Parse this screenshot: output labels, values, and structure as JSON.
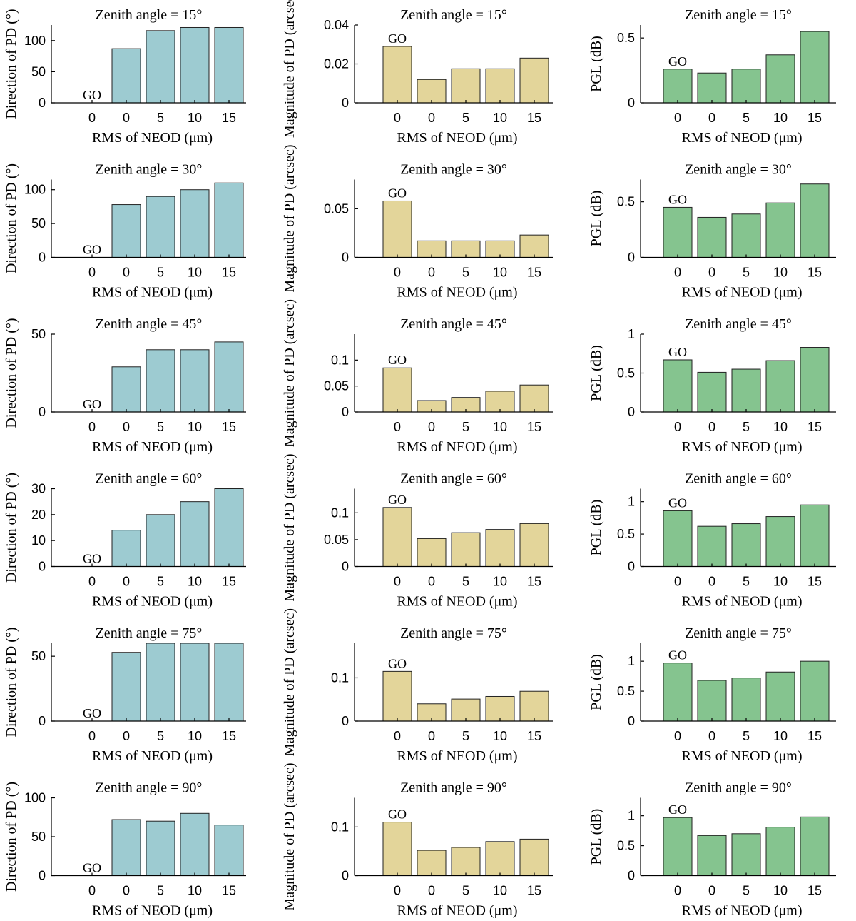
{
  "colors": {
    "direction": "#9dcbd1",
    "magnitude": "#e3d59a",
    "pgl": "#85c48f"
  },
  "chart_data": [
    {
      "type": "bar",
      "metric": "direction",
      "title": "Zenith angle = 15°",
      "xlabel": "RMS of NEOD (μm)",
      "ylabel": "Direction of PD (°)",
      "categories": [
        "0",
        "0",
        "5",
        "10",
        "15"
      ],
      "values": [
        0,
        87,
        116,
        121,
        121
      ],
      "annotation": "GO",
      "yticks": [
        "0",
        "50",
        "100"
      ],
      "ytick_values": [
        0,
        50,
        100
      ],
      "ylim": [
        0,
        125
      ]
    },
    {
      "type": "bar",
      "metric": "magnitude",
      "title": "Zenith angle = 15°",
      "xlabel": "RMS of NEOD (μm)",
      "ylabel": "Magnitude of PD (arcsec)",
      "categories": [
        "0",
        "0",
        "5",
        "10",
        "15"
      ],
      "values": [
        0.029,
        0.012,
        0.0175,
        0.0175,
        0.023
      ],
      "annotation": "GO",
      "yticks": [
        "0",
        "0.02",
        "0.04"
      ],
      "ytick_values": [
        0,
        0.02,
        0.04
      ],
      "ylim": [
        0,
        0.04
      ]
    },
    {
      "type": "bar",
      "metric": "pgl",
      "title": "Zenith angle = 15°",
      "xlabel": "RMS of NEOD (μm)",
      "ylabel": "PGL (dB)",
      "categories": [
        "0",
        "0",
        "5",
        "10",
        "15"
      ],
      "values": [
        0.26,
        0.23,
        0.26,
        0.37,
        0.55
      ],
      "annotation": "GO",
      "yticks": [
        "0",
        "0.5"
      ],
      "ytick_values": [
        0,
        0.5
      ],
      "ylim": [
        0,
        0.6
      ]
    },
    {
      "type": "bar",
      "metric": "direction",
      "title": "Zenith angle = 30°",
      "xlabel": "RMS of NEOD (μm)",
      "ylabel": "Direction of PD (°)",
      "categories": [
        "0",
        "0",
        "5",
        "10",
        "15"
      ],
      "values": [
        0,
        78,
        90,
        100,
        110
      ],
      "annotation": "GO",
      "yticks": [
        "0",
        "50",
        "100"
      ],
      "ytick_values": [
        0,
        50,
        100
      ],
      "ylim": [
        0,
        115
      ]
    },
    {
      "type": "bar",
      "metric": "magnitude",
      "title": "Zenith angle = 30°",
      "xlabel": "RMS of NEOD (μm)",
      "ylabel": "Magnitude of PD (arcsec)",
      "categories": [
        "0",
        "0",
        "5",
        "10",
        "15"
      ],
      "values": [
        0.058,
        0.017,
        0.017,
        0.017,
        0.023
      ],
      "annotation": "GO",
      "yticks": [
        "0",
        "0.05"
      ],
      "ytick_values": [
        0,
        0.05
      ],
      "ylim": [
        0,
        0.08
      ]
    },
    {
      "type": "bar",
      "metric": "pgl",
      "title": "Zenith angle = 30°",
      "xlabel": "RMS of NEOD (μm)",
      "ylabel": "PGL (dB)",
      "categories": [
        "0",
        "0",
        "5",
        "10",
        "15"
      ],
      "values": [
        0.45,
        0.36,
        0.39,
        0.49,
        0.66
      ],
      "annotation": "GO",
      "yticks": [
        "0",
        "0.5"
      ],
      "ytick_values": [
        0,
        0.5
      ],
      "ylim": [
        0,
        0.7
      ]
    },
    {
      "type": "bar",
      "metric": "direction",
      "title": "Zenith angle = 45°",
      "xlabel": "RMS of NEOD (μm)",
      "ylabel": "Direction of PD (°)",
      "categories": [
        "0",
        "0",
        "5",
        "10",
        "15"
      ],
      "values": [
        0,
        29,
        40,
        40,
        45
      ],
      "annotation": "GO",
      "yticks": [
        "0",
        "50"
      ],
      "ytick_values": [
        0,
        50
      ],
      "ylim": [
        0,
        50
      ]
    },
    {
      "type": "bar",
      "metric": "magnitude",
      "title": "Zenith angle = 45°",
      "xlabel": "RMS of NEOD (μm)",
      "ylabel": "Magnitude of PD (arcsec)",
      "categories": [
        "0",
        "0",
        "5",
        "10",
        "15"
      ],
      "values": [
        0.085,
        0.022,
        0.028,
        0.04,
        0.052
      ],
      "annotation": "GO",
      "yticks": [
        "0",
        "0.05",
        "0.1"
      ],
      "ytick_values": [
        0,
        0.05,
        0.1
      ],
      "ylim": [
        0,
        0.15
      ]
    },
    {
      "type": "bar",
      "metric": "pgl",
      "title": "Zenith angle = 45°",
      "xlabel": "RMS of NEOD (μm)",
      "ylabel": "PGL (dB)",
      "categories": [
        "0",
        "0",
        "5",
        "10",
        "15"
      ],
      "values": [
        0.67,
        0.51,
        0.55,
        0.66,
        0.83
      ],
      "annotation": "GO",
      "yticks": [
        "0",
        "0.5",
        "1"
      ],
      "ytick_values": [
        0,
        0.5,
        1
      ],
      "ylim": [
        0,
        1
      ]
    },
    {
      "type": "bar",
      "metric": "direction",
      "title": "Zenith angle = 60°",
      "xlabel": "RMS of NEOD (μm)",
      "ylabel": "Direction of PD (°)",
      "categories": [
        "0",
        "0",
        "5",
        "10",
        "15"
      ],
      "values": [
        0,
        14,
        20,
        25,
        30
      ],
      "annotation": "GO",
      "yticks": [
        "0",
        "10",
        "20",
        "30"
      ],
      "ytick_values": [
        0,
        10,
        20,
        30
      ],
      "ylim": [
        0,
        30
      ]
    },
    {
      "type": "bar",
      "metric": "magnitude",
      "title": "Zenith angle = 60°",
      "xlabel": "RMS of NEOD (μm)",
      "ylabel": "Magnitude of PD (arcsec)",
      "categories": [
        "0",
        "0",
        "5",
        "10",
        "15"
      ],
      "values": [
        0.11,
        0.052,
        0.063,
        0.069,
        0.08
      ],
      "annotation": "GO",
      "yticks": [
        "0",
        "0.05",
        "0.1"
      ],
      "ytick_values": [
        0,
        0.05,
        0.1
      ],
      "ylim": [
        0,
        0.145
      ]
    },
    {
      "type": "bar",
      "metric": "pgl",
      "title": "Zenith angle = 60°",
      "xlabel": "RMS of NEOD (μm)",
      "ylabel": "PGL (dB)",
      "categories": [
        "0",
        "0",
        "5",
        "10",
        "15"
      ],
      "values": [
        0.86,
        0.62,
        0.66,
        0.77,
        0.95
      ],
      "annotation": "GO",
      "yticks": [
        "0",
        "0.5",
        "1"
      ],
      "ytick_values": [
        0,
        0.5,
        1
      ],
      "ylim": [
        0,
        1.2
      ]
    },
    {
      "type": "bar",
      "metric": "direction",
      "title": "Zenith angle = 75°",
      "xlabel": "RMS of NEOD (μm)",
      "ylabel": "Direction of PD (°)",
      "categories": [
        "0",
        "0",
        "5",
        "10",
        "15"
      ],
      "values": [
        0,
        53,
        60,
        60,
        60
      ],
      "annotation": "GO",
      "yticks": [
        "0",
        "50"
      ],
      "ytick_values": [
        0,
        50
      ],
      "ylim": [
        0,
        60
      ]
    },
    {
      "type": "bar",
      "metric": "magnitude",
      "title": "Zenith angle = 75°",
      "xlabel": "RMS of NEOD (μm)",
      "ylabel": "Magnitude of PD (arcsec)",
      "categories": [
        "0",
        "0",
        "5",
        "10",
        "15"
      ],
      "values": [
        0.115,
        0.04,
        0.051,
        0.057,
        0.069
      ],
      "annotation": "GO",
      "yticks": [
        "0",
        "0.1"
      ],
      "ytick_values": [
        0,
        0.1
      ],
      "ylim": [
        0,
        0.18
      ]
    },
    {
      "type": "bar",
      "metric": "pgl",
      "title": "Zenith angle = 75°",
      "xlabel": "RMS of NEOD (μm)",
      "ylabel": "PGL (dB)",
      "categories": [
        "0",
        "0",
        "5",
        "10",
        "15"
      ],
      "values": [
        0.97,
        0.68,
        0.72,
        0.82,
        1.0
      ],
      "annotation": "GO",
      "yticks": [
        "0",
        "0.5",
        "1"
      ],
      "ytick_values": [
        0,
        0.5,
        1
      ],
      "ylim": [
        0,
        1.3
      ]
    },
    {
      "type": "bar",
      "metric": "direction",
      "title": "Zenith angle = 90°",
      "xlabel": "RMS of NEOD (μm)",
      "ylabel": "Direction of PD (°)",
      "categories": [
        "0",
        "0",
        "5",
        "10",
        "15"
      ],
      "values": [
        0,
        72,
        70,
        80,
        65
      ],
      "annotation": "GO",
      "yticks": [
        "0",
        "50",
        "100"
      ],
      "ytick_values": [
        0,
        50,
        100
      ],
      "ylim": [
        0,
        100
      ]
    },
    {
      "type": "bar",
      "metric": "magnitude",
      "title": "Zenith angle = 90°",
      "xlabel": "RMS of NEOD (μm)",
      "ylabel": "Magnitude of PD (arcsec)",
      "categories": [
        "0",
        "0",
        "5",
        "10",
        "15"
      ],
      "values": [
        0.11,
        0.052,
        0.058,
        0.07,
        0.075
      ],
      "annotation": "GO",
      "yticks": [
        "0",
        "0.1"
      ],
      "ytick_values": [
        0,
        0.1
      ],
      "ylim": [
        0,
        0.16
      ]
    },
    {
      "type": "bar",
      "metric": "pgl",
      "title": "Zenith angle = 90°",
      "xlabel": "RMS of NEOD (μm)",
      "ylabel": "PGL (dB)",
      "categories": [
        "0",
        "0",
        "5",
        "10",
        "15"
      ],
      "values": [
        0.97,
        0.67,
        0.7,
        0.81,
        0.98
      ],
      "annotation": "GO",
      "yticks": [
        "0",
        "0.5",
        "1"
      ],
      "ytick_values": [
        0,
        0.5,
        1
      ],
      "ylim": [
        0,
        1.3
      ]
    }
  ]
}
